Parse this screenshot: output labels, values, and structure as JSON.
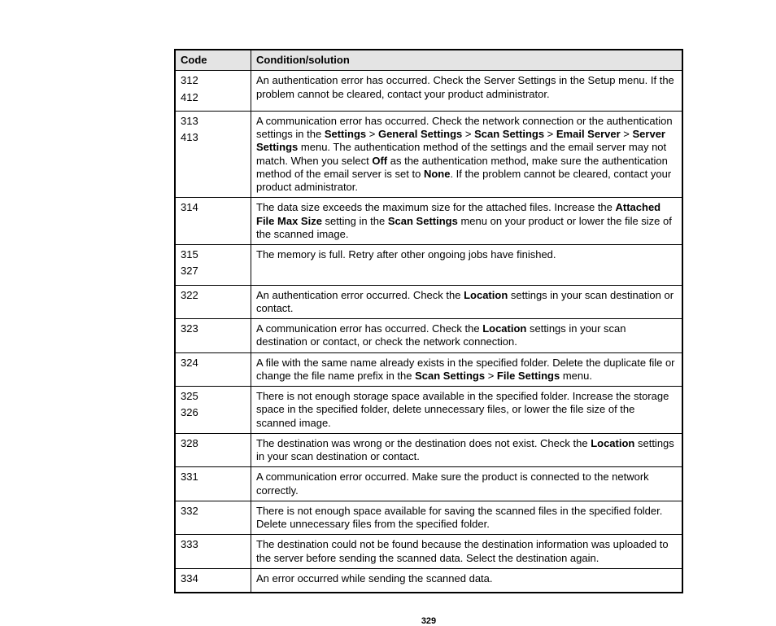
{
  "table": {
    "headers": {
      "code": "Code",
      "condition": "Condition/solution"
    },
    "rows": [
      {
        "codes": [
          "312",
          "412"
        ],
        "parts": [
          {
            "t": "An authentication error has occurred. Check the Server Settings in the Setup menu. If the problem cannot be cleared, contact your product administrator."
          }
        ]
      },
      {
        "codes": [
          "313",
          "413"
        ],
        "parts": [
          {
            "t": "A communication error has occurred. Check the network connection or the authentication settings in the "
          },
          {
            "t": "Settings",
            "b": true
          },
          {
            "t": " > "
          },
          {
            "t": "General Settings",
            "b": true
          },
          {
            "t": " > "
          },
          {
            "t": "Scan Settings",
            "b": true
          },
          {
            "t": " > "
          },
          {
            "t": "Email Server",
            "b": true
          },
          {
            "t": " > "
          },
          {
            "t": "Server Settings",
            "b": true
          },
          {
            "t": " menu. The authentication method of the settings and the email server may not match. When you select "
          },
          {
            "t": "Off",
            "b": true
          },
          {
            "t": " as the authentication method, make sure the authentication method of the email server is set to "
          },
          {
            "t": "None",
            "b": true
          },
          {
            "t": ". If the problem cannot be cleared, contact your product administrator."
          }
        ]
      },
      {
        "codes": [
          "314"
        ],
        "parts": [
          {
            "t": "The data size exceeds the maximum size for the attached files. Increase the "
          },
          {
            "t": "Attached File Max Size",
            "b": true
          },
          {
            "t": " setting in the "
          },
          {
            "t": "Scan Settings",
            "b": true
          },
          {
            "t": " menu on your product or lower the file size of the scanned image."
          }
        ]
      },
      {
        "codes": [
          "315",
          "327"
        ],
        "parts": [
          {
            "t": "The memory is full. Retry after other ongoing jobs have finished."
          }
        ]
      },
      {
        "codes": [
          "322"
        ],
        "parts": [
          {
            "t": "An authentication error occurred. Check the "
          },
          {
            "t": "Location",
            "b": true
          },
          {
            "t": " settings in your scan destination or contact."
          }
        ]
      },
      {
        "codes": [
          "323"
        ],
        "parts": [
          {
            "t": "A communication error has occurred. Check the "
          },
          {
            "t": "Location",
            "b": true
          },
          {
            "t": " settings in your scan destination or contact, or check the network connection."
          }
        ]
      },
      {
        "codes": [
          "324"
        ],
        "parts": [
          {
            "t": "A file with the same name already exists in the specified folder. Delete the duplicate file or change the file name prefix in the "
          },
          {
            "t": "Scan Settings",
            "b": true
          },
          {
            "t": " > "
          },
          {
            "t": "File Settings",
            "b": true
          },
          {
            "t": " menu."
          }
        ]
      },
      {
        "codes": [
          "325",
          "326"
        ],
        "parts": [
          {
            "t": "There is not enough storage space available in the specified folder. Increase the storage space in the specified folder, delete unnecessary files, or lower the file size of the scanned image."
          }
        ]
      },
      {
        "codes": [
          "328"
        ],
        "parts": [
          {
            "t": "The destination was wrong or the destination does not exist. Check the "
          },
          {
            "t": "Location",
            "b": true
          },
          {
            "t": " settings in your scan destination or contact."
          }
        ]
      },
      {
        "codes": [
          "331"
        ],
        "parts": [
          {
            "t": "A communication error occurred. Make sure the product is connected to the network correctly."
          }
        ]
      },
      {
        "codes": [
          "332"
        ],
        "parts": [
          {
            "t": "There is not enough space available for saving the scanned files in the specified folder. Delete unnecessary files from the specified folder."
          }
        ]
      },
      {
        "codes": [
          "333"
        ],
        "parts": [
          {
            "t": "The destination could not be found because the destination information was uploaded to the server before sending the scanned data. Select the destination again."
          }
        ]
      },
      {
        "codes": [
          "334"
        ],
        "parts": [
          {
            "t": "An error occurred while sending the scanned data."
          }
        ]
      }
    ]
  },
  "pageNumber": "329",
  "style": {
    "header_bg": "#e4e4e4",
    "border_color": "#000000",
    "font_size_body": 13,
    "font_size_pagenum": 11
  }
}
